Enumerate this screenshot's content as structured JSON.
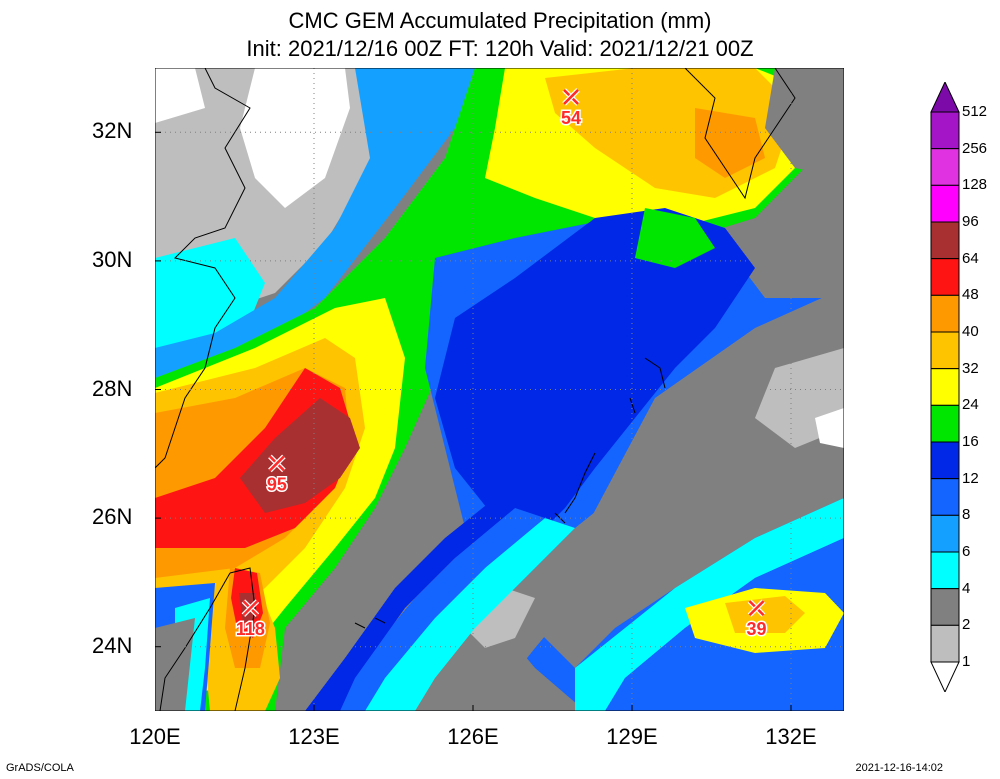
{
  "title": {
    "line1": "CMC GEM Accumulated Precipitation (mm)",
    "line2": "Init: 2021/12/16 00Z  FT: 120h  Valid: 2021/12/21 00Z"
  },
  "axes": {
    "lat_labels": [
      "32N",
      "30N",
      "28N",
      "26N",
      "24N"
    ],
    "lat_values": [
      32,
      30,
      28,
      26,
      24
    ],
    "lon_labels": [
      "120E",
      "123E",
      "126E",
      "129E",
      "132E"
    ],
    "lon_values": [
      120,
      123,
      126,
      129,
      132
    ],
    "lat_range": [
      23,
      33
    ],
    "lon_range": [
      120,
      133
    ]
  },
  "colorbar": {
    "levels": [
      "512",
      "256",
      "128",
      "96",
      "64",
      "48",
      "40",
      "32",
      "24",
      "16",
      "12",
      "8",
      "6",
      "4",
      "2",
      "1"
    ],
    "colors": [
      "#7b0aa8",
      "#a515c8",
      "#e032e0",
      "#ff00ff",
      "#a83030",
      "#ff1414",
      "#ff9900",
      "#ffc400",
      "#ffff00",
      "#00e600",
      "#0028e6",
      "#1464ff",
      "#14a0ff",
      "#00ffff",
      "#808080",
      "#bebebe",
      "#ffffff"
    ]
  },
  "maxima": [
    {
      "value": "54",
      "lat": 32.55,
      "lon": 127.85
    },
    {
      "value": "95",
      "lat": 26.85,
      "lon": 122.3
    },
    {
      "value": "118",
      "lat": 24.6,
      "lon": 121.8
    },
    {
      "value": "39",
      "lat": 24.6,
      "lon": 131.35
    }
  ],
  "footer": {
    "left": "GrADS/COLA",
    "right": "2021-12-16-14:02"
  }
}
